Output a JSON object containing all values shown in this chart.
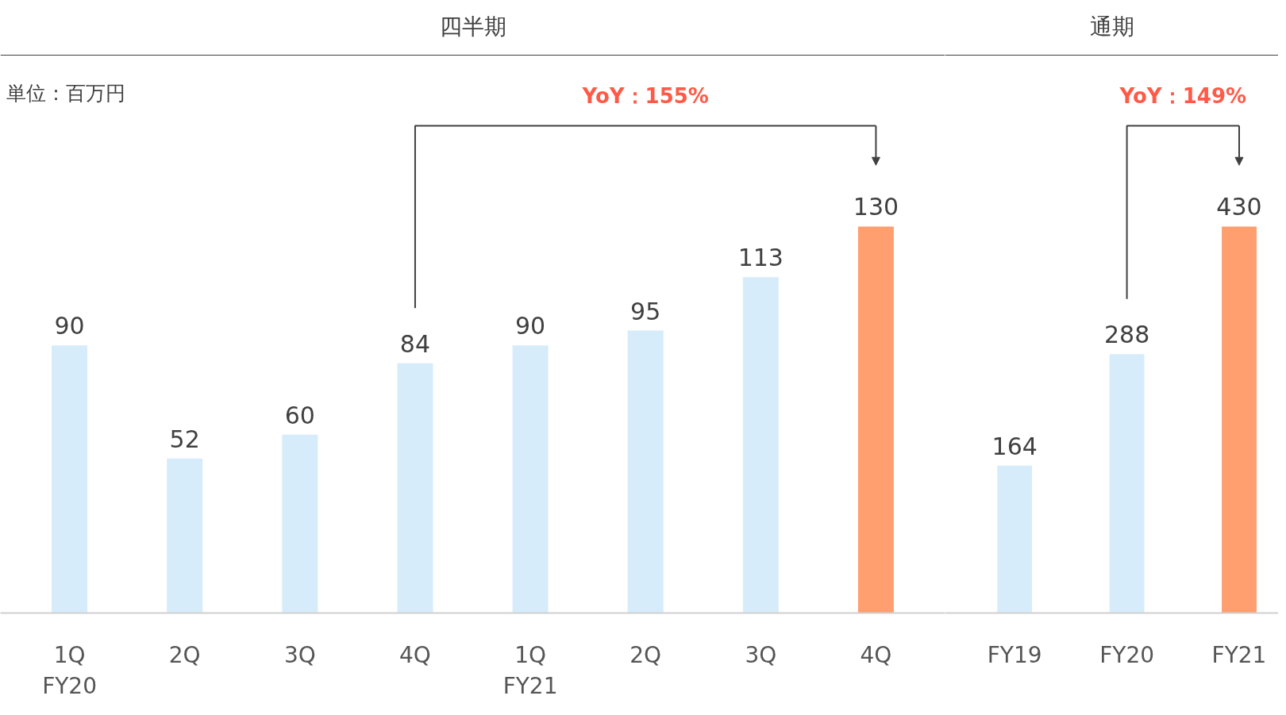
{
  "chart_data": [
    {
      "type": "bar",
      "title": "四半期",
      "categories": [
        "1Q\nFY20",
        "2Q",
        "3Q",
        "4Q",
        "1Q\nFY21",
        "2Q",
        "3Q",
        "4Q"
      ],
      "values": [
        90,
        52,
        60,
        84,
        90,
        95,
        113,
        130
      ],
      "colors": [
        "#d6ecfa",
        "#d6ecfa",
        "#d6ecfa",
        "#d6ecfa",
        "#d6ecfa",
        "#d6ecfa",
        "#d6ecfa",
        "#ff9e6e"
      ],
      "data_labels": true,
      "grid": false,
      "annotations": [
        "単位：百万円",
        "YoY：155%"
      ]
    },
    {
      "type": "bar",
      "title": "通期",
      "categories": [
        "FY19",
        "FY20",
        "FY21"
      ],
      "values": [
        164,
        288,
        430
      ],
      "colors": [
        "#d6ecfa",
        "#d6ecfa",
        "#ff9e6e"
      ],
      "data_labels": true,
      "grid": false,
      "annotations": [
        "YoY：149%"
      ]
    }
  ]
}
